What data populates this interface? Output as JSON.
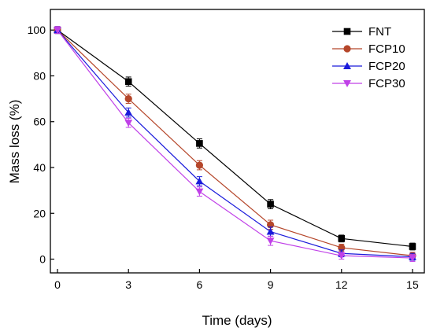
{
  "chart_data": {
    "type": "line",
    "title": "",
    "xlabel": "Time (days)",
    "ylabel": "Mass loss (%)",
    "xlim": [
      -0.3,
      15.5
    ],
    "ylim": [
      -6,
      109
    ],
    "x": [
      0,
      3,
      6,
      9,
      12,
      15
    ],
    "x_tick_labels": [
      "0",
      "3",
      "6",
      "9",
      "12",
      "15"
    ],
    "y_ticks": [
      0,
      20,
      40,
      60,
      80,
      100
    ],
    "y_tick_labels": [
      "0",
      "20",
      "40",
      "60",
      "80",
      "100"
    ],
    "grid": false,
    "legend_position": "top-right",
    "series": [
      {
        "name": "FNT",
        "color": "#000000",
        "marker": "square",
        "values": [
          100,
          77.5,
          50.5,
          24,
          9,
          5.5
        ],
        "errors": [
          1.5,
          2,
          2,
          2,
          1.5,
          1.5
        ]
      },
      {
        "name": "FCP10",
        "color": "#b5462a",
        "marker": "circle",
        "values": [
          100,
          70,
          41,
          15,
          5,
          1.5
        ],
        "errors": [
          1.5,
          2,
          2,
          2,
          1.5,
          1.5
        ]
      },
      {
        "name": "FCP20",
        "color": "#1a1adb",
        "marker": "triangle-up",
        "values": [
          100,
          64,
          34,
          12,
          2.5,
          1
        ],
        "errors": [
          1.5,
          2,
          2,
          2,
          1.5,
          1.5
        ]
      },
      {
        "name": "FCP30",
        "color": "#c040e8",
        "marker": "triangle-down",
        "values": [
          100,
          59.5,
          29.5,
          8,
          1.5,
          0.5
        ],
        "errors": [
          1.5,
          2,
          2,
          2,
          1.5,
          1.5
        ]
      }
    ]
  }
}
